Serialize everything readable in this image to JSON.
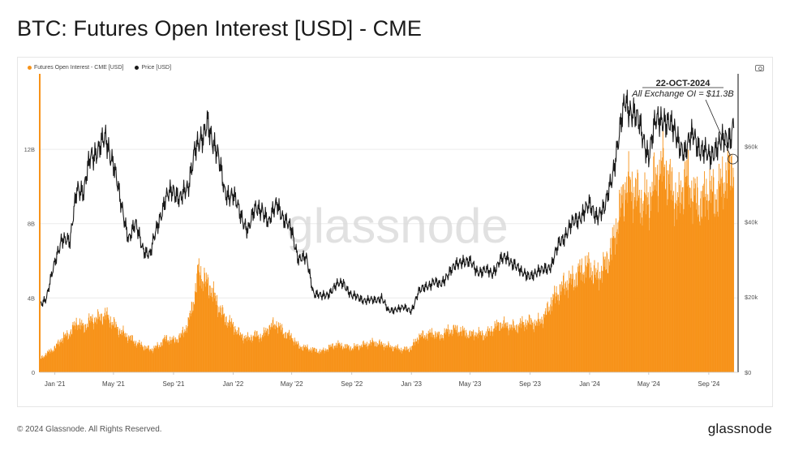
{
  "page": {
    "title": "BTC: Futures Open Interest [USD] - CME",
    "copyright": "© 2024 Glassnode. All Rights Reserved.",
    "brand": "glassnode",
    "watermark": "glassnode",
    "camera_icon": "camera-icon"
  },
  "colors": {
    "oi": "#f7931a",
    "price": "#1a1a1a",
    "grid": "#ececec"
  },
  "chart_data": {
    "type": "bar",
    "title": "BTC: Futures Open Interest [USD] - CME",
    "legend": [
      {
        "label": "Futures Open Interest - CME [USD]",
        "color": "#f7931a"
      },
      {
        "label": "Price [USD]",
        "color": "#1a1a1a"
      }
    ],
    "legend_position": "top-left",
    "grid": true,
    "x_ticks": [
      "Jan '21",
      "May '21",
      "Sep '21",
      "Jan '22",
      "May '22",
      "Sep '22",
      "Jan '23",
      "May '23",
      "Sep '23",
      "Jan '24",
      "May '24",
      "Sep '24"
    ],
    "y_left": {
      "ticks": [
        "0",
        "4B",
        "8B",
        "12B"
      ],
      "values": [
        0,
        4,
        8,
        12
      ],
      "range": [
        0,
        15.8
      ],
      "unit": "B USD"
    },
    "y_right": {
      "ticks": [
        "$0",
        "$20k",
        "$40k",
        "$60k"
      ],
      "values": [
        0,
        20,
        40,
        60
      ],
      "range": [
        0,
        78
      ],
      "unit": "k USD"
    },
    "x_range": [
      "2020-12-01",
      "2024-10-31"
    ],
    "annotation": {
      "date_label": "22-OCT-2024",
      "text": "All Exchange OI = $11.3B",
      "date": "2024-10-22"
    },
    "series": [
      {
        "name": "Futures Open Interest - CME [USD]",
        "kind": "bar",
        "axis": "left",
        "points": [
          [
            "2020-12-01",
            0.7
          ],
          [
            "2020-12-15",
            1.0
          ],
          [
            "2021-01-01",
            1.3
          ],
          [
            "2021-01-15",
            1.8
          ],
          [
            "2021-02-01",
            2.1
          ],
          [
            "2021-02-15",
            2.7
          ],
          [
            "2021-03-01",
            2.4
          ],
          [
            "2021-03-15",
            2.8
          ],
          [
            "2021-04-01",
            2.9
          ],
          [
            "2021-04-15",
            3.1
          ],
          [
            "2021-05-01",
            2.6
          ],
          [
            "2021-05-15",
            2.2
          ],
          [
            "2021-06-01",
            1.9
          ],
          [
            "2021-06-15",
            1.6
          ],
          [
            "2021-07-01",
            1.4
          ],
          [
            "2021-07-15",
            1.2
          ],
          [
            "2021-08-01",
            1.4
          ],
          [
            "2021-08-15",
            1.8
          ],
          [
            "2021-09-01",
            1.7
          ],
          [
            "2021-09-15",
            1.9
          ],
          [
            "2021-10-01",
            2.6
          ],
          [
            "2021-10-15",
            4.2
          ],
          [
            "2021-10-22",
            5.5
          ],
          [
            "2021-11-01",
            5.0
          ],
          [
            "2021-11-15",
            4.6
          ],
          [
            "2021-12-01",
            3.6
          ],
          [
            "2021-12-15",
            2.9
          ],
          [
            "2022-01-01",
            2.5
          ],
          [
            "2022-01-15",
            2.0
          ],
          [
            "2022-02-01",
            1.8
          ],
          [
            "2022-02-15",
            2.0
          ],
          [
            "2022-03-01",
            1.9
          ],
          [
            "2022-03-15",
            2.4
          ],
          [
            "2022-04-01",
            2.6
          ],
          [
            "2022-04-15",
            2.1
          ],
          [
            "2022-05-01",
            1.9
          ],
          [
            "2022-05-15",
            1.4
          ],
          [
            "2022-06-01",
            1.3
          ],
          [
            "2022-06-15",
            1.2
          ],
          [
            "2022-07-01",
            1.1
          ],
          [
            "2022-07-15",
            1.3
          ],
          [
            "2022-08-01",
            1.5
          ],
          [
            "2022-08-15",
            1.4
          ],
          [
            "2022-09-01",
            1.3
          ],
          [
            "2022-09-15",
            1.4
          ],
          [
            "2022-10-01",
            1.5
          ],
          [
            "2022-10-15",
            1.6
          ],
          [
            "2022-11-01",
            1.5
          ],
          [
            "2022-11-15",
            1.4
          ],
          [
            "2022-12-01",
            1.3
          ],
          [
            "2022-12-15",
            1.2
          ],
          [
            "2023-01-01",
            1.3
          ],
          [
            "2023-01-15",
            1.9
          ],
          [
            "2023-02-01",
            2.0
          ],
          [
            "2023-02-15",
            2.1
          ],
          [
            "2023-03-01",
            1.9
          ],
          [
            "2023-03-15",
            2.2
          ],
          [
            "2023-04-01",
            2.3
          ],
          [
            "2023-04-15",
            2.2
          ],
          [
            "2023-05-01",
            2.0
          ],
          [
            "2023-05-15",
            2.1
          ],
          [
            "2023-06-01",
            2.0
          ],
          [
            "2023-06-15",
            2.3
          ],
          [
            "2023-07-01",
            2.6
          ],
          [
            "2023-07-15",
            2.5
          ],
          [
            "2023-08-01",
            2.4
          ],
          [
            "2023-08-15",
            2.6
          ],
          [
            "2023-09-01",
            2.7
          ],
          [
            "2023-09-15",
            2.6
          ],
          [
            "2023-10-01",
            3.0
          ],
          [
            "2023-10-15",
            3.8
          ],
          [
            "2023-11-01",
            4.4
          ],
          [
            "2023-11-15",
            4.8
          ],
          [
            "2023-12-01",
            5.0
          ],
          [
            "2023-12-15",
            5.5
          ],
          [
            "2024-01-01",
            5.7
          ],
          [
            "2024-01-15",
            5.1
          ],
          [
            "2024-02-01",
            5.7
          ],
          [
            "2024-02-15",
            6.6
          ],
          [
            "2024-03-01",
            8.4
          ],
          [
            "2024-03-15",
            10.1
          ],
          [
            "2024-04-01",
            9.8
          ],
          [
            "2024-04-15",
            9.2
          ],
          [
            "2024-05-01",
            9.2
          ],
          [
            "2024-05-15",
            10.4
          ],
          [
            "2024-06-01",
            11.2
          ],
          [
            "2024-06-15",
            10.0
          ],
          [
            "2024-07-01",
            9.0
          ],
          [
            "2024-07-15",
            10.6
          ],
          [
            "2024-08-01",
            9.5
          ],
          [
            "2024-08-15",
            9.0
          ],
          [
            "2024-09-01",
            9.8
          ],
          [
            "2024-09-15",
            9.4
          ],
          [
            "2024-10-01",
            10.3
          ],
          [
            "2024-10-15",
            10.8
          ],
          [
            "2024-10-22",
            11.3
          ]
        ]
      },
      {
        "name": "Price [USD]",
        "kind": "line",
        "axis": "right",
        "points": [
          [
            "2020-12-01",
            18
          ],
          [
            "2020-12-15",
            20
          ],
          [
            "2021-01-01",
            29
          ],
          [
            "2021-01-15",
            36
          ],
          [
            "2021-02-01",
            34
          ],
          [
            "2021-02-15",
            50
          ],
          [
            "2021-03-01",
            47
          ],
          [
            "2021-03-15",
            58
          ],
          [
            "2021-04-01",
            59
          ],
          [
            "2021-04-15",
            62
          ],
          [
            "2021-05-01",
            56
          ],
          [
            "2021-05-15",
            45
          ],
          [
            "2021-06-01",
            36
          ],
          [
            "2021-06-15",
            39
          ],
          [
            "2021-07-01",
            33
          ],
          [
            "2021-07-15",
            31
          ],
          [
            "2021-08-01",
            40
          ],
          [
            "2021-08-15",
            46
          ],
          [
            "2021-09-01",
            48
          ],
          [
            "2021-09-15",
            47
          ],
          [
            "2021-10-01",
            48
          ],
          [
            "2021-10-15",
            61
          ],
          [
            "2021-11-01",
            61
          ],
          [
            "2021-11-10",
            67
          ],
          [
            "2021-12-01",
            57
          ],
          [
            "2021-12-15",
            48
          ],
          [
            "2022-01-01",
            47
          ],
          [
            "2022-01-15",
            42
          ],
          [
            "2022-02-01",
            38
          ],
          [
            "2022-02-15",
            43
          ],
          [
            "2022-03-01",
            44
          ],
          [
            "2022-03-15",
            39
          ],
          [
            "2022-04-01",
            46
          ],
          [
            "2022-04-15",
            40
          ],
          [
            "2022-05-01",
            38
          ],
          [
            "2022-05-15",
            30
          ],
          [
            "2022-06-01",
            30
          ],
          [
            "2022-06-15",
            21
          ],
          [
            "2022-07-01",
            20
          ],
          [
            "2022-07-15",
            21
          ],
          [
            "2022-08-01",
            23
          ],
          [
            "2022-08-15",
            24
          ],
          [
            "2022-09-01",
            20
          ],
          [
            "2022-09-15",
            20
          ],
          [
            "2022-10-01",
            19
          ],
          [
            "2022-10-15",
            19
          ],
          [
            "2022-11-01",
            20
          ],
          [
            "2022-11-15",
            16
          ],
          [
            "2022-12-01",
            17
          ],
          [
            "2022-12-15",
            17
          ],
          [
            "2023-01-01",
            16.5
          ],
          [
            "2023-01-15",
            21
          ],
          [
            "2023-02-01",
            23
          ],
          [
            "2023-02-15",
            24
          ],
          [
            "2023-03-01",
            23
          ],
          [
            "2023-03-15",
            26
          ],
          [
            "2023-04-01",
            28
          ],
          [
            "2023-04-15",
            30
          ],
          [
            "2023-05-01",
            29
          ],
          [
            "2023-05-15",
            27
          ],
          [
            "2023-06-01",
            27
          ],
          [
            "2023-06-15",
            26
          ],
          [
            "2023-07-01",
            30
          ],
          [
            "2023-07-15",
            30
          ],
          [
            "2023-08-01",
            29
          ],
          [
            "2023-08-15",
            26
          ],
          [
            "2023-09-01",
            26
          ],
          [
            "2023-09-15",
            26
          ],
          [
            "2023-10-01",
            28
          ],
          [
            "2023-10-15",
            28
          ],
          [
            "2023-11-01",
            35
          ],
          [
            "2023-11-15",
            37
          ],
          [
            "2023-12-01",
            40
          ],
          [
            "2023-12-15",
            42
          ],
          [
            "2024-01-01",
            44
          ],
          [
            "2024-01-15",
            42
          ],
          [
            "2024-02-01",
            43
          ],
          [
            "2024-02-15",
            52
          ],
          [
            "2024-03-01",
            62
          ],
          [
            "2024-03-14",
            72
          ],
          [
            "2024-04-01",
            69
          ],
          [
            "2024-04-15",
            64
          ],
          [
            "2024-05-01",
            58
          ],
          [
            "2024-05-15",
            66
          ],
          [
            "2024-06-01",
            68
          ],
          [
            "2024-06-15",
            65
          ],
          [
            "2024-07-01",
            62
          ],
          [
            "2024-07-15",
            58
          ],
          [
            "2024-08-01",
            64
          ],
          [
            "2024-08-15",
            59
          ],
          [
            "2024-09-01",
            57
          ],
          [
            "2024-09-15",
            60
          ],
          [
            "2024-10-01",
            61
          ],
          [
            "2024-10-15",
            63
          ],
          [
            "2024-10-22",
            67
          ]
        ]
      }
    ]
  }
}
